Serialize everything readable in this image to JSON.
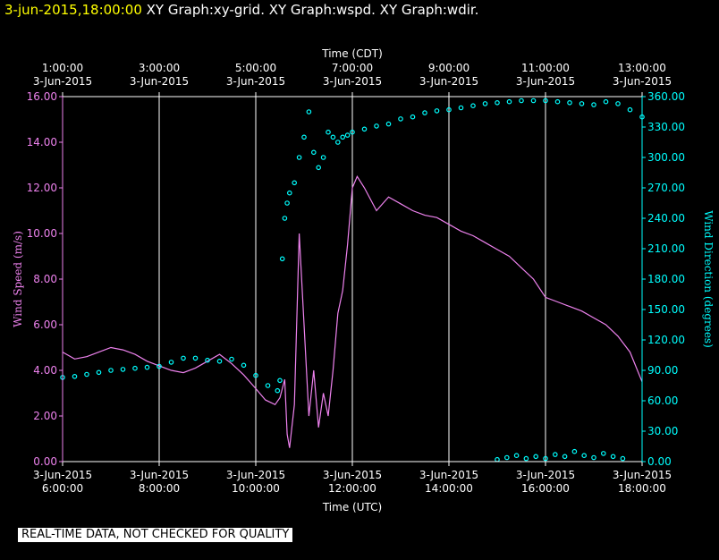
{
  "header": {
    "timestamp": "3-jun-2015,18:00:00",
    "graphs": " XY Graph:xy-grid.  XY Graph:wspd.  XY Graph:wdir."
  },
  "disclaimer": "REAL-TIME DATA, NOT CHECKED FOR QUALITY",
  "colors": {
    "wspd": "#ee82ee",
    "wdir": "#00ffff",
    "axis": "#ffffff",
    "grid": "#ffffff",
    "background": "#000000"
  },
  "chart_data": {
    "type": "line",
    "grid": true,
    "x_axis_bottom": {
      "title": "Time (UTC)",
      "ticks": [
        {
          "hour": 6,
          "line1": "3-Jun-2015",
          "line2": "6:00:00"
        },
        {
          "hour": 8,
          "line1": "3-Jun-2015",
          "line2": "8:00:00"
        },
        {
          "hour": 10,
          "line1": "3-Jun-2015",
          "line2": "10:00:00"
        },
        {
          "hour": 12,
          "line1": "3-Jun-2015",
          "line2": "12:00:00"
        },
        {
          "hour": 14,
          "line1": "3-Jun-2015",
          "line2": "14:00:00"
        },
        {
          "hour": 16,
          "line1": "3-Jun-2015",
          "line2": "16:00:00"
        },
        {
          "hour": 18,
          "line1": "3-Jun-2015",
          "line2": "18:00:00"
        }
      ]
    },
    "x_axis_top": {
      "title": "Time (CDT)",
      "ticks": [
        {
          "hour": 6,
          "line1": "1:00:00",
          "line2": "3-Jun-2015"
        },
        {
          "hour": 8,
          "line1": "3:00:00",
          "line2": "3-Jun-2015"
        },
        {
          "hour": 10,
          "line1": "5:00:00",
          "line2": "3-Jun-2015"
        },
        {
          "hour": 12,
          "line1": "7:00:00",
          "line2": "3-Jun-2015"
        },
        {
          "hour": 14,
          "line1": "9:00:00",
          "line2": "3-Jun-2015"
        },
        {
          "hour": 16,
          "line1": "11:00:00",
          "line2": "3-Jun-2015"
        },
        {
          "hour": 18,
          "line1": "13:00:00",
          "line2": "3-Jun-2015"
        }
      ]
    },
    "xlim": [
      6,
      18
    ],
    "y_left": {
      "label": "Wind Speed (m/s)",
      "ylim": [
        0,
        16
      ],
      "ticks": [
        "0.00",
        "2.00",
        "4.00",
        "6.00",
        "8.00",
        "10.00",
        "12.00",
        "14.00",
        "16.00"
      ]
    },
    "y_right": {
      "label": "Wind Direction (degrees)",
      "ylim": [
        0,
        360
      ],
      "ticks": [
        "0.00",
        "30.00",
        "60.00",
        "90.00",
        "120.00",
        "150.00",
        "180.00",
        "210.00",
        "240.00",
        "270.00",
        "300.00",
        "330.00",
        "360.00"
      ]
    },
    "series": [
      {
        "key": "wspd",
        "axis": "left",
        "style": "line",
        "x": [
          6.0,
          6.25,
          6.5,
          6.75,
          7.0,
          7.25,
          7.5,
          7.75,
          8.0,
          8.25,
          8.5,
          8.75,
          9.0,
          9.25,
          9.5,
          9.75,
          10.0,
          10.2,
          10.4,
          10.5,
          10.55,
          10.6,
          10.65,
          10.7,
          10.8,
          10.9,
          11.0,
          11.1,
          11.2,
          11.3,
          11.4,
          11.5,
          11.6,
          11.7,
          11.8,
          11.9,
          12.0,
          12.1,
          12.25,
          12.5,
          12.75,
          13.0,
          13.25,
          13.5,
          13.75,
          14.0,
          14.25,
          14.5,
          14.75,
          15.0,
          15.25,
          15.5,
          15.75,
          16.0,
          16.25,
          16.5,
          16.75,
          17.0,
          17.25,
          17.5,
          17.75,
          18.0
        ],
        "values": [
          4.8,
          4.5,
          4.6,
          4.8,
          5.0,
          4.9,
          4.7,
          4.4,
          4.2,
          4.0,
          3.9,
          4.1,
          4.4,
          4.7,
          4.3,
          3.8,
          3.2,
          2.7,
          2.5,
          2.8,
          3.2,
          3.6,
          1.2,
          0.6,
          2.5,
          10.0,
          6.0,
          2.0,
          4.0,
          1.5,
          3.0,
          2.0,
          4.0,
          6.5,
          7.5,
          9.5,
          12.0,
          12.5,
          12.0,
          11.0,
          11.6,
          11.3,
          11.0,
          10.8,
          10.7,
          10.4,
          10.1,
          9.9,
          9.6,
          9.3,
          9.0,
          8.5,
          8.0,
          7.2,
          7.0,
          6.8,
          6.6,
          6.3,
          6.0,
          5.5,
          4.8,
          3.5
        ]
      },
      {
        "key": "wdir",
        "axis": "right",
        "style": "markers",
        "x": [
          6.0,
          6.25,
          6.5,
          6.75,
          7.0,
          7.25,
          7.5,
          7.75,
          8.0,
          8.25,
          8.5,
          8.75,
          9.0,
          9.25,
          9.5,
          9.75,
          10.0,
          10.25,
          10.45,
          10.5,
          10.55,
          10.6,
          10.65,
          10.7,
          10.8,
          10.9,
          11.0,
          11.1,
          11.2,
          11.3,
          11.4,
          11.5,
          11.6,
          11.7,
          11.8,
          11.9,
          12.0,
          12.25,
          12.5,
          12.75,
          13.0,
          13.25,
          13.5,
          13.75,
          14.0,
          14.25,
          14.5,
          14.75,
          15.0,
          15.25,
          15.5,
          15.75,
          16.0,
          16.25,
          16.5,
          16.75,
          17.0,
          17.25,
          17.5,
          17.75,
          18.0
        ],
        "values": [
          83,
          84,
          86,
          88,
          90,
          91,
          92,
          93,
          94,
          98,
          102,
          102,
          100,
          99,
          101,
          95,
          85,
          75,
          70,
          80,
          200,
          240,
          255,
          265,
          275,
          300,
          320,
          345,
          305,
          290,
          300,
          325,
          320,
          315,
          320,
          322,
          325,
          328,
          331,
          333,
          338,
          340,
          344,
          346,
          347,
          349,
          351,
          353,
          354,
          355,
          356,
          356,
          356,
          355,
          354,
          353,
          352,
          355,
          353,
          347,
          340
        ]
      },
      {
        "key": "wdir_wrap",
        "axis": "right",
        "style": "markers",
        "x": [
          15.0,
          15.2,
          15.4,
          15.6,
          15.8,
          16.0,
          16.2,
          16.4,
          16.6,
          16.8,
          17.0,
          17.2,
          17.4,
          17.6
        ],
        "values": [
          2,
          4,
          6,
          3,
          5,
          3,
          7,
          5,
          10,
          6,
          4,
          8,
          5,
          3
        ]
      }
    ]
  }
}
